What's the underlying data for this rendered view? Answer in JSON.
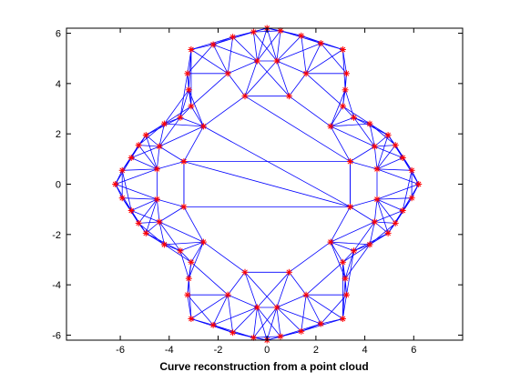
{
  "chart_data": {
    "type": "scatter",
    "title": "",
    "xlabel": "Curve reconstruction from a point cloud",
    "ylabel": "",
    "xlim": [
      -8.2,
      8
    ],
    "ylim": [
      -6.2,
      6.2
    ],
    "xticks": [
      -6,
      -4,
      -2,
      0,
      2,
      4,
      6
    ],
    "yticks": [
      -6,
      -4,
      -2,
      0,
      2,
      4,
      6
    ],
    "xtick_labels": [
      "-6",
      "-4",
      "-2",
      "0",
      "2",
      "4",
      "6"
    ],
    "ytick_labels": [
      "-6",
      "-4",
      "-2",
      "0",
      "2",
      "4",
      "6"
    ],
    "grid": false,
    "legend": "none",
    "colors": {
      "points": "#ff0000",
      "edges": "#0000ff",
      "axes": "#000000"
    },
    "series": [
      {
        "marker": "asterisk",
        "curve_model": {
          "description_of_shape": "closed star-shaped curve",
          "base_radius": 4.75,
          "amplitude": 1.45,
          "lobes": 6,
          "phase_deg": 0
        },
        "points": [
          [
            6.2,
            0.0
          ],
          [
            5.92,
            0.55
          ],
          [
            5.55,
            1.05
          ],
          [
            5.25,
            1.55
          ],
          [
            4.95,
            1.95
          ],
          [
            4.2,
            2.4
          ],
          [
            3.55,
            2.65
          ],
          [
            3.1,
            3.1
          ],
          [
            3.2,
            3.75
          ],
          [
            3.25,
            4.4
          ],
          [
            3.1,
            5.35
          ],
          [
            2.2,
            5.6
          ],
          [
            1.4,
            5.9
          ],
          [
            0.55,
            6.1
          ],
          [
            0.0,
            6.2
          ],
          [
            -0.55,
            6.05
          ],
          [
            -1.4,
            5.85
          ],
          [
            -2.2,
            5.55
          ],
          [
            -3.1,
            5.35
          ],
          [
            -3.25,
            4.4
          ],
          [
            -3.2,
            3.75
          ],
          [
            -3.1,
            3.1
          ],
          [
            -3.55,
            2.65
          ],
          [
            -4.2,
            2.4
          ],
          [
            -4.95,
            1.95
          ],
          [
            -5.25,
            1.55
          ],
          [
            -5.55,
            1.05
          ],
          [
            -5.92,
            0.55
          ],
          [
            -6.2,
            0.0
          ],
          [
            -5.92,
            -0.55
          ],
          [
            -5.55,
            -1.05
          ],
          [
            -5.25,
            -1.55
          ],
          [
            -4.95,
            -1.95
          ],
          [
            -4.2,
            -2.4
          ],
          [
            -3.55,
            -2.65
          ],
          [
            -3.1,
            -3.1
          ],
          [
            -3.2,
            -3.75
          ],
          [
            -3.25,
            -4.4
          ],
          [
            -3.1,
            -5.35
          ],
          [
            -2.2,
            -5.6
          ],
          [
            -1.4,
            -5.9
          ],
          [
            -0.55,
            -6.1
          ],
          [
            0.0,
            -6.2
          ],
          [
            0.55,
            -6.05
          ],
          [
            1.4,
            -5.85
          ],
          [
            2.2,
            -5.55
          ],
          [
            3.1,
            -5.35
          ],
          [
            3.25,
            -4.4
          ],
          [
            3.2,
            -3.75
          ],
          [
            3.1,
            -3.1
          ],
          [
            3.55,
            -2.65
          ],
          [
            4.2,
            -2.4
          ],
          [
            4.95,
            -1.95
          ],
          [
            5.25,
            -1.55
          ],
          [
            5.55,
            -1.05
          ],
          [
            5.92,
            -0.55
          ],
          [
            3.4,
            0.9
          ],
          [
            3.4,
            -0.9
          ],
          [
            -3.4,
            0.9
          ],
          [
            -3.4,
            -0.9
          ],
          [
            0.9,
            3.5
          ],
          [
            -0.9,
            3.5
          ],
          [
            0.9,
            -3.5
          ],
          [
            -0.9,
            -3.5
          ],
          [
            2.6,
            2.3
          ],
          [
            -2.6,
            2.3
          ],
          [
            2.6,
            -2.3
          ],
          [
            -2.6,
            -2.3
          ],
          [
            1.6,
            4.4
          ],
          [
            -1.6,
            4.4
          ],
          [
            1.6,
            -4.4
          ],
          [
            -1.6,
            -4.4
          ],
          [
            4.4,
            1.5
          ],
          [
            -4.4,
            1.5
          ],
          [
            4.4,
            -1.5
          ],
          [
            -4.4,
            -1.5
          ],
          [
            4.5,
            0.6
          ],
          [
            -4.5,
            0.6
          ],
          [
            4.5,
            -0.6
          ],
          [
            -4.5,
            -0.6
          ],
          [
            0.4,
            4.9
          ],
          [
            -0.4,
            4.9
          ],
          [
            0.4,
            -4.9
          ],
          [
            -0.4,
            -4.9
          ]
        ]
      }
    ]
  }
}
